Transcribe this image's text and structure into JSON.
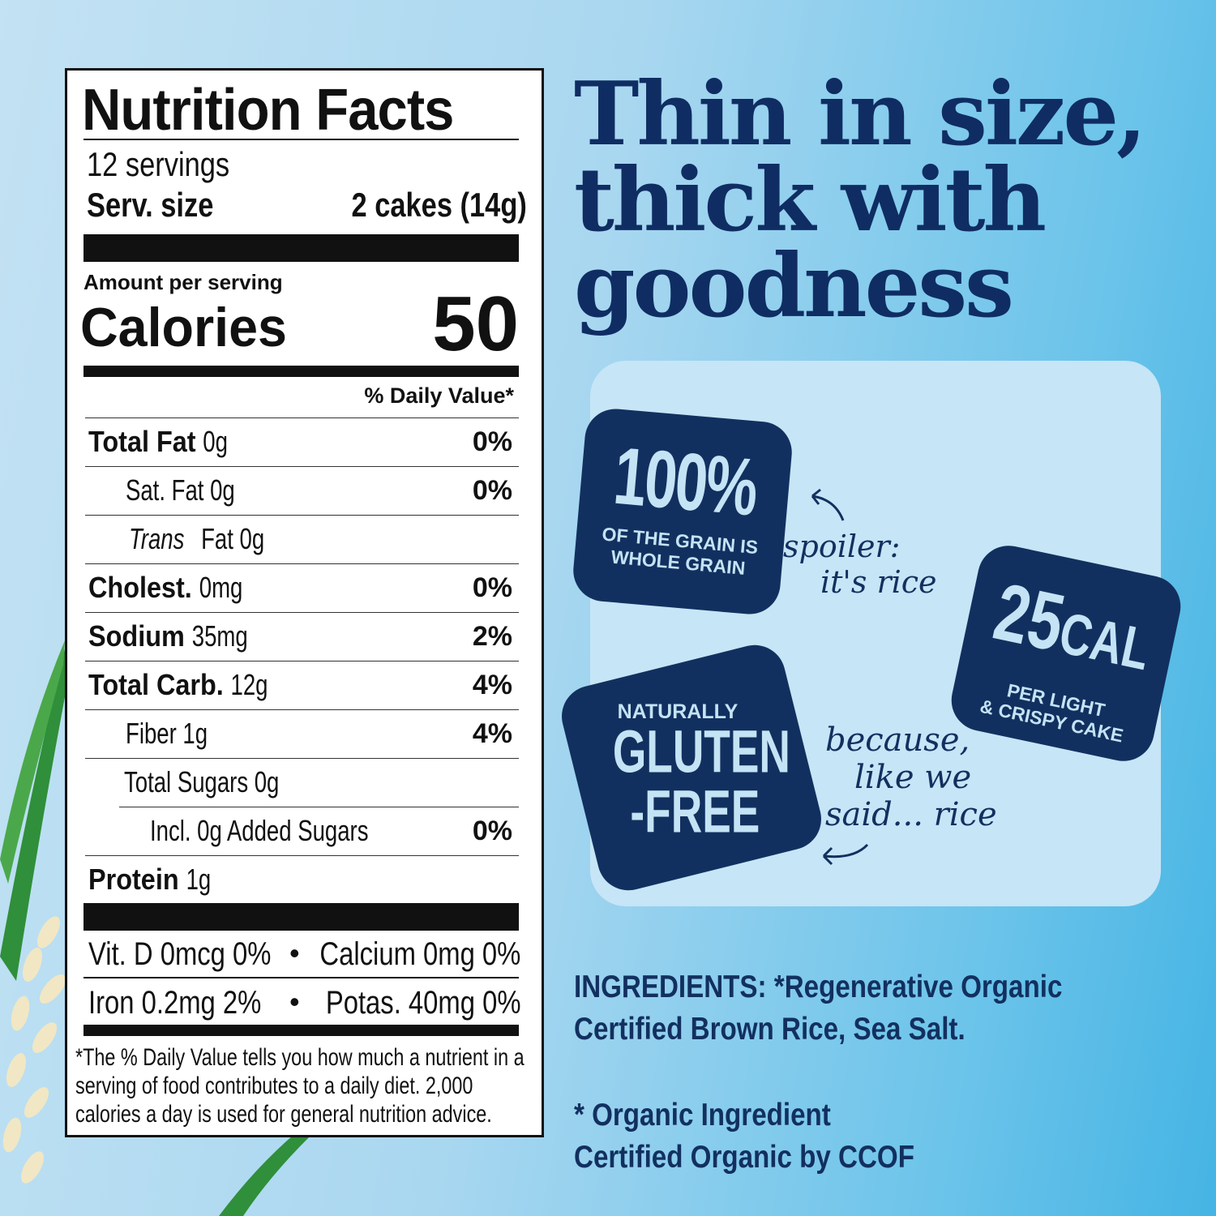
{
  "nutrition_label": {
    "title": "Nutrition Facts",
    "servings": "12 servings",
    "serving_size_label": "Serv. size",
    "serving_size_value": "2 cakes (14g)",
    "amount_per_serving": "Amount per serving",
    "calories_label": "Calories",
    "calories_value": "50",
    "daily_value_header": "% Daily Value*",
    "rows": [
      {
        "bold": "Total Fat",
        "amount": "0g",
        "dv": "0%"
      },
      {
        "bold": "",
        "amount": "Sat. Fat 0g",
        "dv": "0%"
      },
      {
        "italic": "Trans",
        "amount": "Fat 0g",
        "dv": ""
      },
      {
        "bold": "Cholest.",
        "amount": "0mg",
        "dv": "0%"
      },
      {
        "bold": "Sodium",
        "amount": "35mg",
        "dv": "2%"
      },
      {
        "bold": "Total Carb.",
        "amount": "12g",
        "dv": "4%"
      },
      {
        "bold": "",
        "amount": "Fiber 1g",
        "dv": "4%"
      },
      {
        "bold": "",
        "amount": "Total Sugars 0g",
        "dv": ""
      },
      {
        "bold": "",
        "amount": "Incl. 0g Added Sugars",
        "dv": "0%"
      },
      {
        "bold": "Protein",
        "amount": "1g",
        "dv": ""
      }
    ],
    "vitamins": [
      {
        "left": "Vit. D 0mcg 0%",
        "right": "Calcium 0mg 0%"
      },
      {
        "left": "Iron 0.2mg 2%",
        "right": "Potas. 40mg 0%"
      }
    ],
    "separator": "•",
    "footnote": [
      "*The % Daily Value tells you how much a nutrient in a",
      "serving of food contributes to a daily diet. 2,000",
      "calories a day is used for general nutrition advice."
    ]
  },
  "headline": [
    "Thin in size,",
    "thick with",
    "goodness"
  ],
  "badges": {
    "whole_grain": {
      "big": "100%",
      "small": [
        "OF THE GRAIN IS",
        "WHOLE GRAIN"
      ]
    },
    "calories": {
      "big": "25",
      "unit": "CAL",
      "small": [
        "PER LIGHT",
        "& CRISPY CAKE"
      ]
    },
    "gluten_free": {
      "top": "NATURALLY",
      "big": [
        "GLUTEN",
        "-FREE"
      ]
    }
  },
  "callouts": {
    "spoiler": [
      "spoiler:",
      "it's rice"
    ],
    "because": [
      "because,",
      "like we",
      "said... rice"
    ]
  },
  "ingredients": {
    "text": [
      "INGREDIENTS: *Regenerative Organic",
      "Certified Brown Rice, Sea Salt."
    ],
    "note": [
      "* Organic Ingredient",
      "Certified Organic by CCOF"
    ]
  },
  "colors": {
    "navy": "#12305f",
    "badge_text": "#c4e3f4",
    "panel": "#c6e5f6",
    "leaf": "#2f8f3a"
  }
}
